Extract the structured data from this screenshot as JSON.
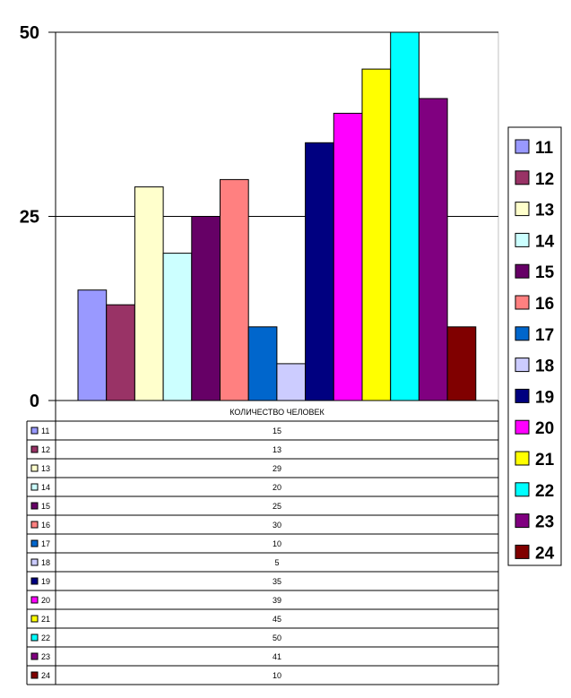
{
  "chart_data": {
    "type": "bar",
    "table_header": "КОЛИЧЕСТВО ЧЕЛОВЕК",
    "ylim": [
      0,
      50
    ],
    "yticks": [
      "0",
      "25",
      "50"
    ],
    "grid": true,
    "legend_position": "right",
    "series": [
      {
        "name": "11",
        "value": 15,
        "value_label": "15",
        "color": "#9999FF"
      },
      {
        "name": "12",
        "value": 13,
        "value_label": "13",
        "color": "#993366"
      },
      {
        "name": "13",
        "value": 29,
        "value_label": "29",
        "color": "#FFFFCC"
      },
      {
        "name": "14",
        "value": 20,
        "value_label": "20",
        "color": "#CCFFFF"
      },
      {
        "name": "15",
        "value": 25,
        "value_label": "25",
        "color": "#660066"
      },
      {
        "name": "16",
        "value": 30,
        "value_label": "30",
        "color": "#FF8080"
      },
      {
        "name": "17",
        "value": 10,
        "value_label": "10",
        "color": "#0066CC"
      },
      {
        "name": "18",
        "value": 5,
        "value_label": "5",
        "color": "#CCCCFF"
      },
      {
        "name": "19",
        "value": 35,
        "value_label": "35",
        "color": "#000080"
      },
      {
        "name": "20",
        "value": 39,
        "value_label": "39",
        "color": "#FF00FF"
      },
      {
        "name": "21",
        "value": 45,
        "value_label": "45",
        "color": "#FFFF00"
      },
      {
        "name": "22",
        "value": 50,
        "value_label": "50",
        "color": "#00FFFF"
      },
      {
        "name": "23",
        "value": 41,
        "value_label": "41",
        "color": "#800080"
      },
      {
        "name": "24",
        "value": 10,
        "value_label": "10",
        "color": "#800000"
      }
    ]
  }
}
